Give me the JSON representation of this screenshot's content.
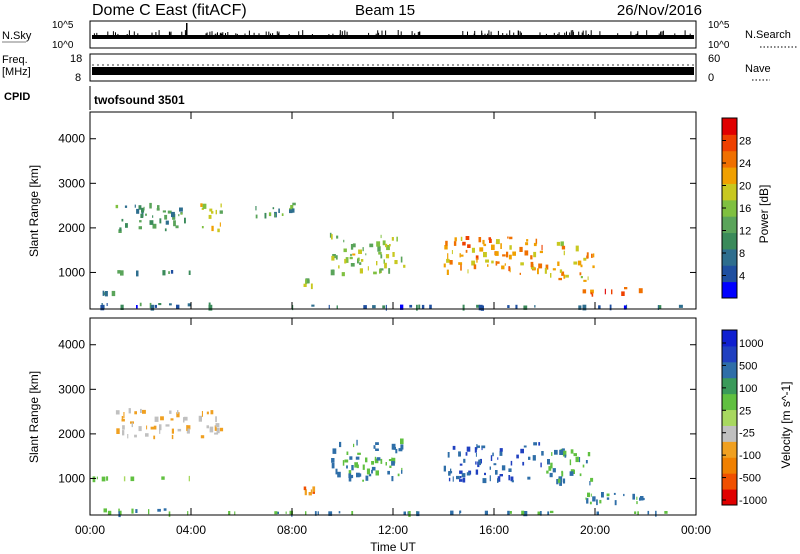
{
  "header": {
    "title": "Dome C East (fitACF)",
    "beam": "Beam 15",
    "date": "26/Nov/2016"
  },
  "strips": {
    "nsky": {
      "label": "N.Sky",
      "ticks": [
        "10^5",
        "10^0"
      ]
    },
    "nsearch": {
      "label": "N.Search",
      "ticks": [
        "10^5",
        "10^0"
      ]
    },
    "freq": {
      "label_1": "Freq.",
      "label_2": "[MHz]",
      "ticks": [
        "18",
        "8"
      ]
    },
    "nave": {
      "label": "Nave",
      "ticks": [
        "60",
        "0"
      ]
    },
    "cpid": {
      "label": "CPID",
      "value": "twofsound 3501"
    }
  },
  "colors": {
    "power": [
      "#0000ff",
      "#1f4fa0",
      "#2e6e8e",
      "#3a8a5a",
      "#5aa45a",
      "#7fc040",
      "#c8c820",
      "#f0a000",
      "#f07000",
      "#ee4000",
      "#e00000"
    ],
    "velocity": [
      "#e00000",
      "#f05000",
      "#f08000",
      "#f0a020",
      "#c0c0c0",
      "#a8d860",
      "#60c040",
      "#3a9a5a",
      "#2e6ea8",
      "#2040c0",
      "#1020d0"
    ]
  },
  "chart_data": [
    {
      "type": "heatmap",
      "name": "power-panel",
      "xlabel": "",
      "ylabel": "Slant Range [km]",
      "xlim": [
        0,
        24
      ],
      "ylim": [
        180,
        4600
      ],
      "y_ticks": [
        1000,
        2000,
        3000,
        4000
      ],
      "x_ticks": [
        "00:00",
        "04:00",
        "08:00",
        "12:00",
        "16:00",
        "20:00",
        "00:00"
      ],
      "colorbar": {
        "label": "Power [dB]",
        "range": [
          0,
          32
        ],
        "ticks": [
          4,
          8,
          12,
          16,
          20,
          24,
          28
        ]
      },
      "features": [
        {
          "t": [
            0.0,
            4.0
          ],
          "r": [
            960,
            1060
          ],
          "level": 8
        },
        {
          "t": [
            0.0,
            5.0
          ],
          "r": [
            250,
            330
          ],
          "level": 8
        },
        {
          "t": [
            0.2,
            1.0
          ],
          "r": [
            480,
            600
          ],
          "level": 10
        },
        {
          "t": [
            1.0,
            4.0
          ],
          "r": [
            1880,
            2580
          ],
          "level": 10
        },
        {
          "t": [
            4.3,
            5.3
          ],
          "r": [
            1880,
            2580
          ],
          "level": 18
        },
        {
          "t": [
            6.5,
            8.5
          ],
          "r": [
            2200,
            2600
          ],
          "level": 12
        },
        {
          "t": [
            8.4,
            9.0
          ],
          "r": [
            600,
            900
          ],
          "level": 16
        },
        {
          "t": [
            9.5,
            12.5
          ],
          "r": [
            900,
            1900
          ],
          "level": 16
        },
        {
          "t": [
            14.0,
            18.0
          ],
          "r": [
            880,
            1820
          ],
          "level": 24
        },
        {
          "t": [
            18.0,
            20.0
          ],
          "r": [
            780,
            1700
          ],
          "level": 22
        },
        {
          "t": [
            19.5,
            22.0
          ],
          "r": [
            400,
            720
          ],
          "level": 26
        },
        {
          "t": [
            0.0,
            24.0
          ],
          "r": [
            200,
            280
          ],
          "level": 6
        }
      ]
    },
    {
      "type": "heatmap",
      "name": "velocity-panel",
      "xlabel": "Time UT",
      "ylabel": "Slant Range [km]",
      "xlim": [
        0,
        24
      ],
      "ylim": [
        180,
        4600
      ],
      "y_ticks": [
        1000,
        2000,
        3000,
        4000
      ],
      "x_ticks": [
        "00:00",
        "04:00",
        "08:00",
        "12:00",
        "16:00",
        "20:00",
        "00:00"
      ],
      "colorbar": {
        "label": "Velocity [m s^-1]",
        "ticks": [
          "1000",
          "500",
          "100",
          "25",
          "-25",
          "-100",
          "-500",
          "-1000"
        ]
      },
      "features": [
        {
          "t": [
            0.0,
            4.0
          ],
          "r": [
            960,
            1060
          ],
          "level": 25
        },
        {
          "t": [
            0.0,
            5.0
          ],
          "r": [
            250,
            330
          ],
          "level": 100
        },
        {
          "t": [
            1.0,
            4.0
          ],
          "r": [
            1880,
            2580
          ],
          "level": -100
        },
        {
          "t": [
            4.3,
            5.3
          ],
          "r": [
            1880,
            2580
          ],
          "level": -100
        },
        {
          "t": [
            8.4,
            9.0
          ],
          "r": [
            600,
            900
          ],
          "level": -500
        },
        {
          "t": [
            9.5,
            12.5
          ],
          "r": [
            900,
            1900
          ],
          "level": 100
        },
        {
          "t": [
            14.0,
            18.0
          ],
          "r": [
            880,
            1820
          ],
          "level": 500
        },
        {
          "t": [
            18.0,
            20.0
          ],
          "r": [
            780,
            1700
          ],
          "level": 100
        },
        {
          "t": [
            19.5,
            22.0
          ],
          "r": [
            400,
            720
          ],
          "level": 100
        },
        {
          "t": [
            0.0,
            24.0
          ],
          "r": [
            200,
            280
          ],
          "level": 100
        }
      ]
    }
  ]
}
